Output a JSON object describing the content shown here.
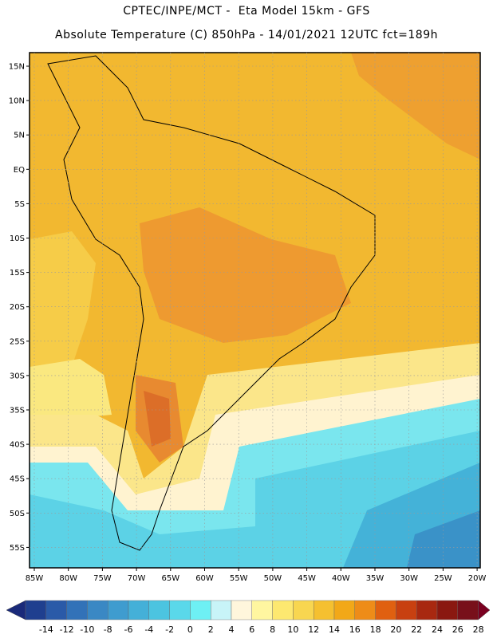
{
  "header": {
    "line1": "CPTEC/INPE/MCT -  Eta Model 15km - GFS",
    "line2": "Absolute Temperature (C) 850hPa - 14/01/2021 12UTC fct=189h"
  },
  "axes": {
    "lat_labels": [
      "15N",
      "10N",
      "5N",
      "EQ",
      "5S",
      "10S",
      "15S",
      "20S",
      "25S",
      "30S",
      "35S",
      "40S",
      "45S",
      "50S",
      "55S"
    ],
    "lon_labels": [
      "85W",
      "80W",
      "75W",
      "70W",
      "65W",
      "60W",
      "55W",
      "50W",
      "45W",
      "40W",
      "35W",
      "30W",
      "25W",
      "20W"
    ]
  },
  "colorbar": {
    "labels": [
      "-14",
      "-12",
      "-10",
      "-8",
      "-6",
      "-4",
      "-2",
      "0",
      "2",
      "4",
      "6",
      "8",
      "10",
      "12",
      "14",
      "16",
      "18",
      "20",
      "22",
      "24",
      "26",
      "28"
    ],
    "colors": [
      "#1f3f8f",
      "#2a5aa8",
      "#3272b8",
      "#3a88c4",
      "#3f9ccf",
      "#44b0d8",
      "#4cc4e0",
      "#5ad8ea",
      "#6ef0f4",
      "#c8f4f8",
      "#fff6dc",
      "#fff6a0",
      "#fde870",
      "#f8d650",
      "#f5c030",
      "#f2a818",
      "#ee8c18",
      "#e06010",
      "#c84010",
      "#a82810",
      "#8a1810",
      "#78101a"
    ],
    "arrow_left": "#1a2a7a",
    "arrow_right": "#7a0020"
  }
}
